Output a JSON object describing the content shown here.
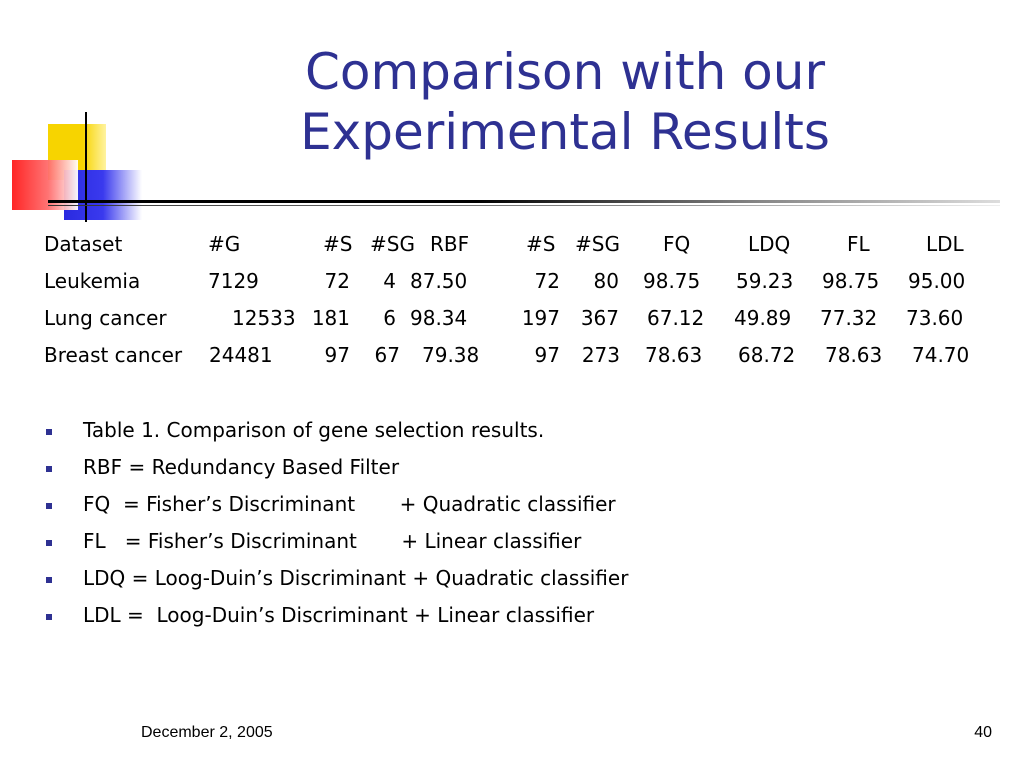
{
  "title": {
    "line1": "Comparison with our",
    "line2": "Experimental Results"
  },
  "table": {
    "headers": [
      "Dataset",
      "#G",
      "#S",
      "#SG",
      "RBF",
      "#S",
      "#SG",
      "FQ",
      "LDQ",
      "FL",
      "LDL"
    ],
    "rows": [
      [
        "Leukemia",
        "7129",
        "72",
        "4",
        "87.50",
        "72",
        "80",
        "98.75",
        "59.23",
        "98.75",
        "95.00"
      ],
      [
        "Lung cancer",
        "12533",
        "181",
        "6",
        "98.34",
        "197",
        "367",
        "67.12",
        "49.89",
        "77.32",
        "73.60"
      ],
      [
        "Breast cancer",
        "24481",
        "97",
        "67",
        "79.38",
        "97",
        "273",
        "78.63",
        "68.72",
        "78.63",
        "74.70"
      ]
    ]
  },
  "bullets": [
    "Table 1. Comparison of gene selection results.",
    "RBF = Redundancy Based Filter",
    "FQ  = Fisher’s Discriminant       + Quadratic classifier",
    "FL   = Fisher’s Discriminant       + Linear classifier",
    "LDQ = Loog-Duin’s Discriminant + Quadratic classifier",
    "LDL =  Loog-Duin’s Discriminant + Linear classifier"
  ],
  "footer": {
    "date": "December 2, 2005",
    "page": "40"
  },
  "colors": {
    "title": "#2e3192",
    "bullet": "#2e3192"
  }
}
